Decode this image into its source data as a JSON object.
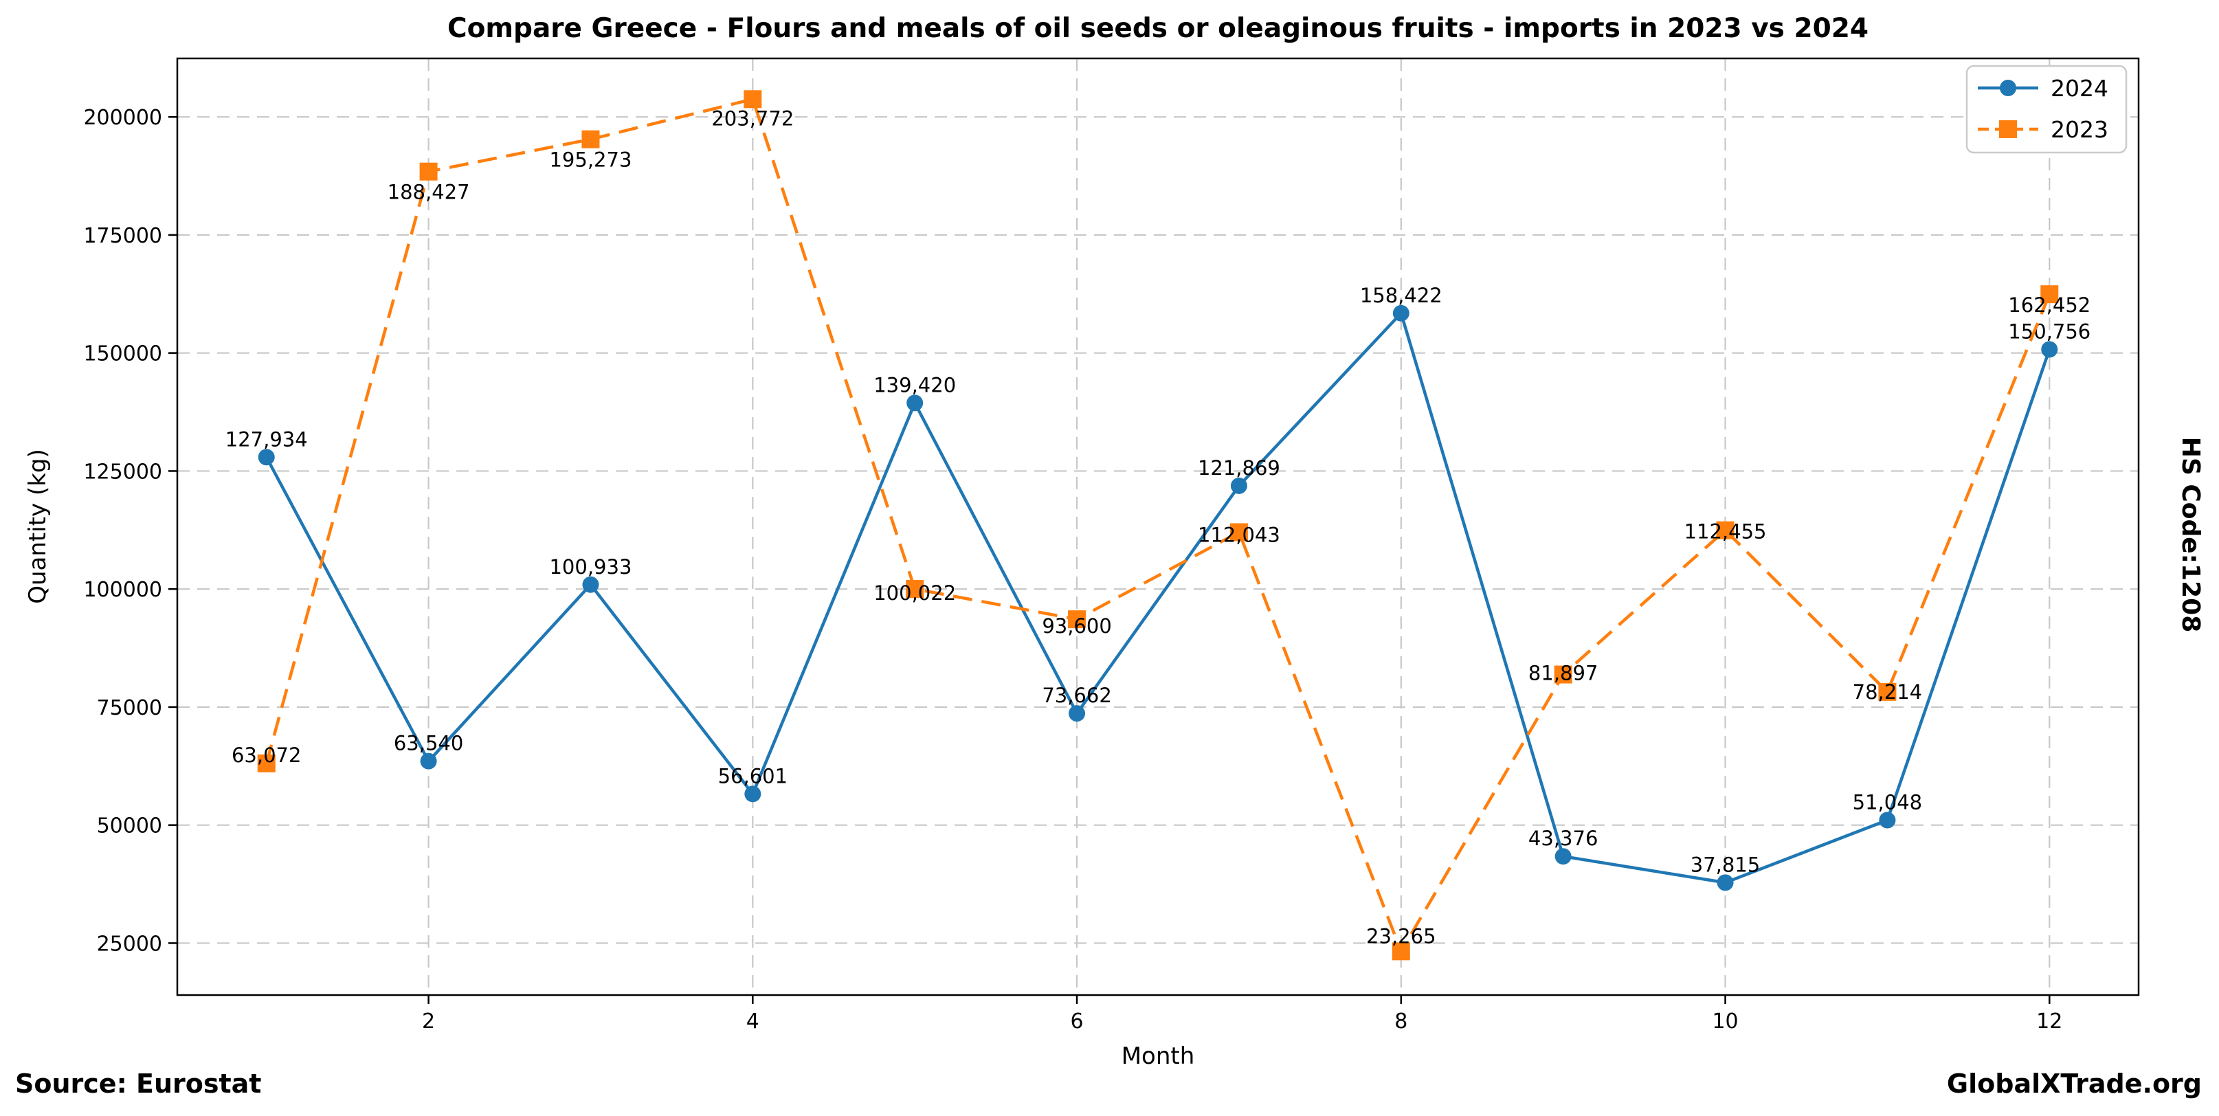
{
  "title": "Compare Greece - Flours and meals of oil seeds or oleaginous fruits - imports in 2023 vs 2024",
  "axes": {
    "xlabel": "Month",
    "ylabel": "Quantity (kg)",
    "x_ticks": [
      2,
      4,
      6,
      8,
      10,
      12
    ],
    "y_ticks": [
      25000,
      50000,
      75000,
      100000,
      125000,
      150000,
      175000,
      200000
    ],
    "xlim": [
      0.45,
      12.55
    ],
    "ylim": [
      14000,
      212400
    ],
    "grid": true,
    "grid_color": "#c8c8c8"
  },
  "legend": {
    "position": "upper right",
    "entries": [
      {
        "label": "2024",
        "color": "#1f77b4",
        "marker": "circle",
        "linestyle": "solid"
      },
      {
        "label": "2023",
        "color": "#ff7f0e",
        "marker": "square",
        "linestyle": "dashed"
      }
    ]
  },
  "chart_data": {
    "type": "line",
    "x": [
      1,
      2,
      3,
      4,
      5,
      6,
      7,
      8,
      9,
      10,
      11,
      12
    ],
    "series": [
      {
        "name": "2024",
        "color": "#1f77b4",
        "marker": "circle",
        "linestyle": "solid",
        "values": [
          127934,
          63540,
          100933,
          56601,
          139420,
          73662,
          121869,
          158422,
          43376,
          37815,
          51048,
          150756
        ],
        "labels": [
          "127,934",
          "63,540",
          "100,933",
          "56,601",
          "139,420",
          "73,662",
          "121,869",
          "158,422",
          "43,376",
          "37,815",
          "51,048",
          "150,756"
        ]
      },
      {
        "name": "2023",
        "color": "#ff7f0e",
        "marker": "square",
        "linestyle": "dashed",
        "values": [
          63072,
          188427,
          195273,
          203772,
          100022,
          93600,
          112043,
          23265,
          81897,
          112455,
          78214,
          162452
        ],
        "labels": [
          "63,072",
          "188,427",
          "195,273",
          "203,772",
          "100,022",
          "93,600",
          "112,043",
          "23,265",
          "81,897",
          "112,455",
          "78,214",
          "162,452"
        ]
      }
    ],
    "title": "Compare Greece - Flours and meals of oil seeds or oleaginous fruits - imports in 2023 vs 2024",
    "xlabel": "Month",
    "ylabel": "Quantity (kg)"
  },
  "footer": {
    "source": "Source: Eurostat",
    "watermark": "GlobalXTrade.org"
  },
  "side_label": "HS Code:1208"
}
